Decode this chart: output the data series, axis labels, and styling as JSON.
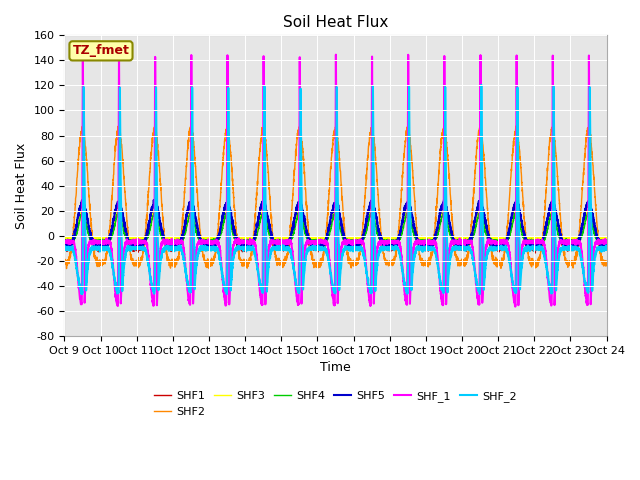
{
  "title": "Soil Heat Flux",
  "xlabel": "Time",
  "ylabel": "Soil Heat Flux",
  "ylim": [
    -80,
    160
  ],
  "yticks": [
    -80,
    -60,
    -40,
    -20,
    0,
    20,
    40,
    60,
    80,
    100,
    120,
    140,
    160
  ],
  "xtick_labels": [
    "Oct 9",
    "Oct 10",
    "Oct 11",
    "Oct 12",
    "Oct 13",
    "Oct 14",
    "Oct 15",
    "Oct 16",
    "Oct 17",
    "Oct 18",
    "Oct 19",
    "Oct 20",
    "Oct 21",
    "Oct 22",
    "Oct 23",
    "Oct 24"
  ],
  "series_names": [
    "SHF1",
    "SHF2",
    "SHF3",
    "SHF4",
    "SHF5",
    "SHF_1",
    "SHF_2"
  ],
  "series_colors": [
    "#cc0000",
    "#ff8800",
    "#ffff00",
    "#00cc00",
    "#0000cc",
    "#ff00ff",
    "#00ccff"
  ],
  "series_linewidths": [
    1.0,
    1.0,
    1.0,
    1.0,
    1.5,
    1.5,
    1.5
  ],
  "annotation_text": "TZ_fmet",
  "annotation_color": "#aa0000",
  "annotation_bg": "#ffffaa",
  "annotation_border": "#888800",
  "background_color": "#e6e6e6",
  "outer_bg": "#ffffff",
  "n_days": 15,
  "points_per_day": 288
}
